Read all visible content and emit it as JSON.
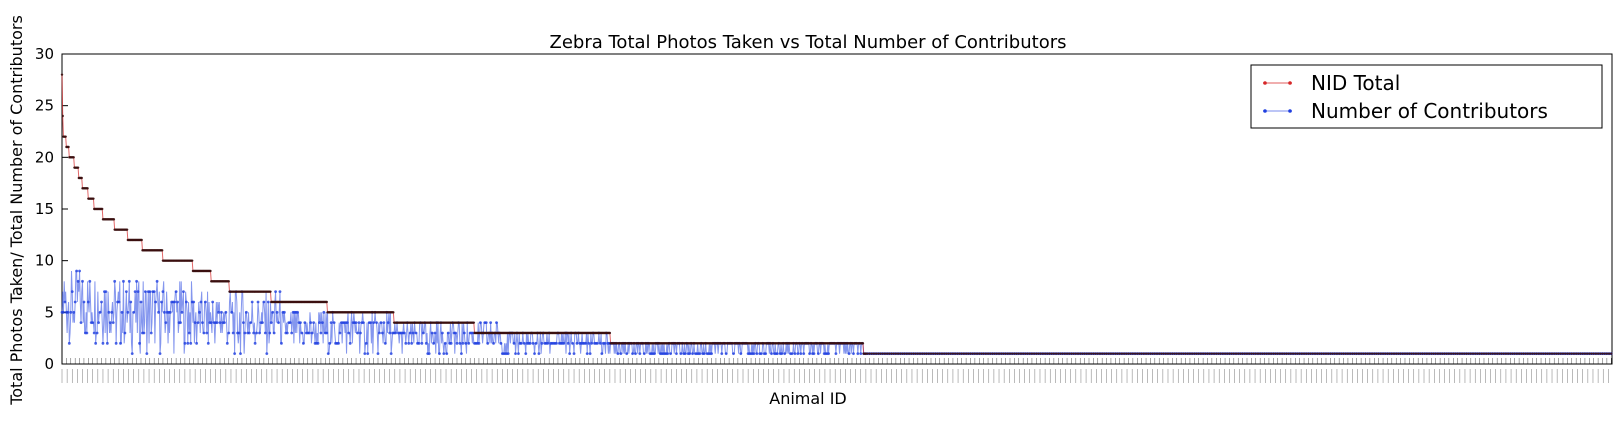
{
  "chart_data": {
    "type": "line",
    "title": "Zebra Total Photos Taken vs Total Number of Contributors",
    "xlabel": "Animal ID",
    "ylabel": "Total Photos Taken/ Total Number of Contributors",
    "ylim": [
      0,
      30
    ],
    "yticks": [
      0,
      5,
      10,
      15,
      20,
      25,
      30
    ],
    "legend_position": "top-right",
    "x_tick_labels_note": "dense unreadable animal ID labels",
    "series": [
      {
        "name": "NID Total",
        "color": "#d62728",
        "segments": [
          {
            "start": 0,
            "end": 1,
            "value": 28
          },
          {
            "start": 1,
            "end": 2,
            "value": 24
          },
          {
            "start": 2,
            "end": 6,
            "value": 22
          },
          {
            "start": 6,
            "end": 10,
            "value": 21
          },
          {
            "start": 10,
            "end": 17,
            "value": 20
          },
          {
            "start": 17,
            "end": 23,
            "value": 19
          },
          {
            "start": 23,
            "end": 28,
            "value": 18
          },
          {
            "start": 28,
            "end": 36,
            "value": 17
          },
          {
            "start": 36,
            "end": 44,
            "value": 16
          },
          {
            "start": 44,
            "end": 56,
            "value": 15
          },
          {
            "start": 56,
            "end": 72,
            "value": 14
          },
          {
            "start": 72,
            "end": 90,
            "value": 13
          },
          {
            "start": 90,
            "end": 110,
            "value": 12
          },
          {
            "start": 110,
            "end": 138,
            "value": 11
          },
          {
            "start": 138,
            "end": 179,
            "value": 10
          },
          {
            "start": 179,
            "end": 204,
            "value": 9
          },
          {
            "start": 204,
            "end": 229,
            "value": 8
          },
          {
            "start": 229,
            "end": 286,
            "value": 7
          },
          {
            "start": 286,
            "end": 363,
            "value": 6
          },
          {
            "start": 363,
            "end": 454,
            "value": 5
          },
          {
            "start": 454,
            "end": 564,
            "value": 4
          },
          {
            "start": 564,
            "end": 750,
            "value": 3
          },
          {
            "start": 750,
            "end": 1096,
            "value": 2
          },
          {
            "start": 1096,
            "end": 2120,
            "value": 1
          }
        ]
      },
      {
        "name": "Number of Contributors",
        "color": "#1f3fe0",
        "segments": [
          {
            "start": 0,
            "end": 70,
            "value_range": [
              2,
              9
            ]
          },
          {
            "start": 70,
            "end": 180,
            "value_range": [
              1,
              8
            ]
          },
          {
            "start": 180,
            "end": 300,
            "value_range": [
              1,
              7
            ]
          },
          {
            "start": 300,
            "end": 450,
            "value_range": [
              1,
              5
            ]
          },
          {
            "start": 450,
            "end": 600,
            "value_range": [
              1,
              4
            ]
          },
          {
            "start": 600,
            "end": 750,
            "value_range": [
              1,
              3
            ]
          },
          {
            "start": 750,
            "end": 1096,
            "value_range": [
              1,
              2
            ]
          },
          {
            "start": 1096,
            "end": 2120,
            "value_range": [
              1,
              1
            ]
          }
        ]
      }
    ]
  }
}
